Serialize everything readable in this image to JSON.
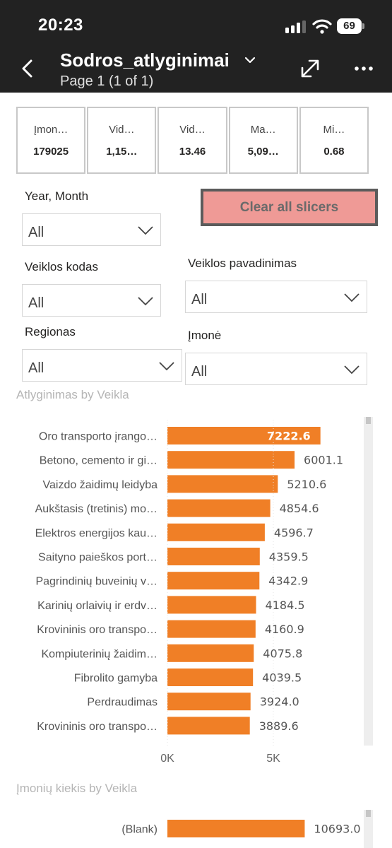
{
  "status": {
    "time": "20:23",
    "battery": "69"
  },
  "header": {
    "title": "Sodros_atlyginimai",
    "subtitle": "Page 1 (1 of 1)"
  },
  "cards": [
    {
      "label": "Įmon…",
      "value": "179025"
    },
    {
      "label": "Vid…",
      "value": "1,15…"
    },
    {
      "label": "Vid…",
      "value": "13.46"
    },
    {
      "label": "Ma…",
      "value": "5,09…"
    },
    {
      "label": "Mi…",
      "value": "0.68"
    }
  ],
  "slicers": {
    "year_month": {
      "label": "Year, Month",
      "value": "All"
    },
    "veiklos_kodas": {
      "label": "Veiklos kodas",
      "value": "All"
    },
    "veiklos_pavadinimas": {
      "label": "Veiklos pavadinimas",
      "value": "All"
    },
    "regionas": {
      "label": "Regionas",
      "value": "All"
    },
    "imone": {
      "label": "Įmonė",
      "value": "All"
    }
  },
  "clear_button": "Clear all slicers",
  "colors": {
    "bar": "#f07f26",
    "header": "#222222",
    "clear_button": "#ef9a96"
  },
  "chart_data": [
    {
      "type": "bar",
      "orientation": "horizontal",
      "title": "Atlyginimas by Veikla",
      "categories": [
        "Oro transporto įrango…",
        "Betono, cemento ir gi…",
        "Vaizdo žaidimų leidyba",
        "Aukštasis (tretinis) mo…",
        "Elektros energijos kau…",
        "Saityno paieškos port…",
        "Pagrindinių buveinių v…",
        "Karinių orlaivių ir erdv…",
        "Krovininis oro transpo…",
        "Kompiuterinių žaidim…",
        "Fibrolito gamyba",
        "Perdraudimas",
        "Krovininis oro transpo…"
      ],
      "values": [
        7222.6,
        6001.1,
        5210.6,
        4854.6,
        4596.7,
        4359.5,
        4342.9,
        4184.5,
        4160.9,
        4075.8,
        4039.5,
        3924.0,
        3889.6
      ],
      "data_labels": [
        "7222.6",
        "6001.1",
        "5210.6",
        "4854.6",
        "4596.7",
        "4359.5",
        "4342.9",
        "4184.5",
        "4160.9",
        "4075.8",
        "4039.5",
        "3924.0",
        "3889.6"
      ],
      "x_ticks": [
        "0K",
        "5K"
      ],
      "xlim": [
        0,
        10000
      ]
    },
    {
      "type": "bar",
      "orientation": "horizontal",
      "title": "Įmonių kiekis by Veikla",
      "categories": [
        "(Blank)"
      ],
      "values": [
        10693.0
      ],
      "data_labels": [
        "10693.0"
      ],
      "xlim": [
        0,
        16500
      ]
    }
  ]
}
